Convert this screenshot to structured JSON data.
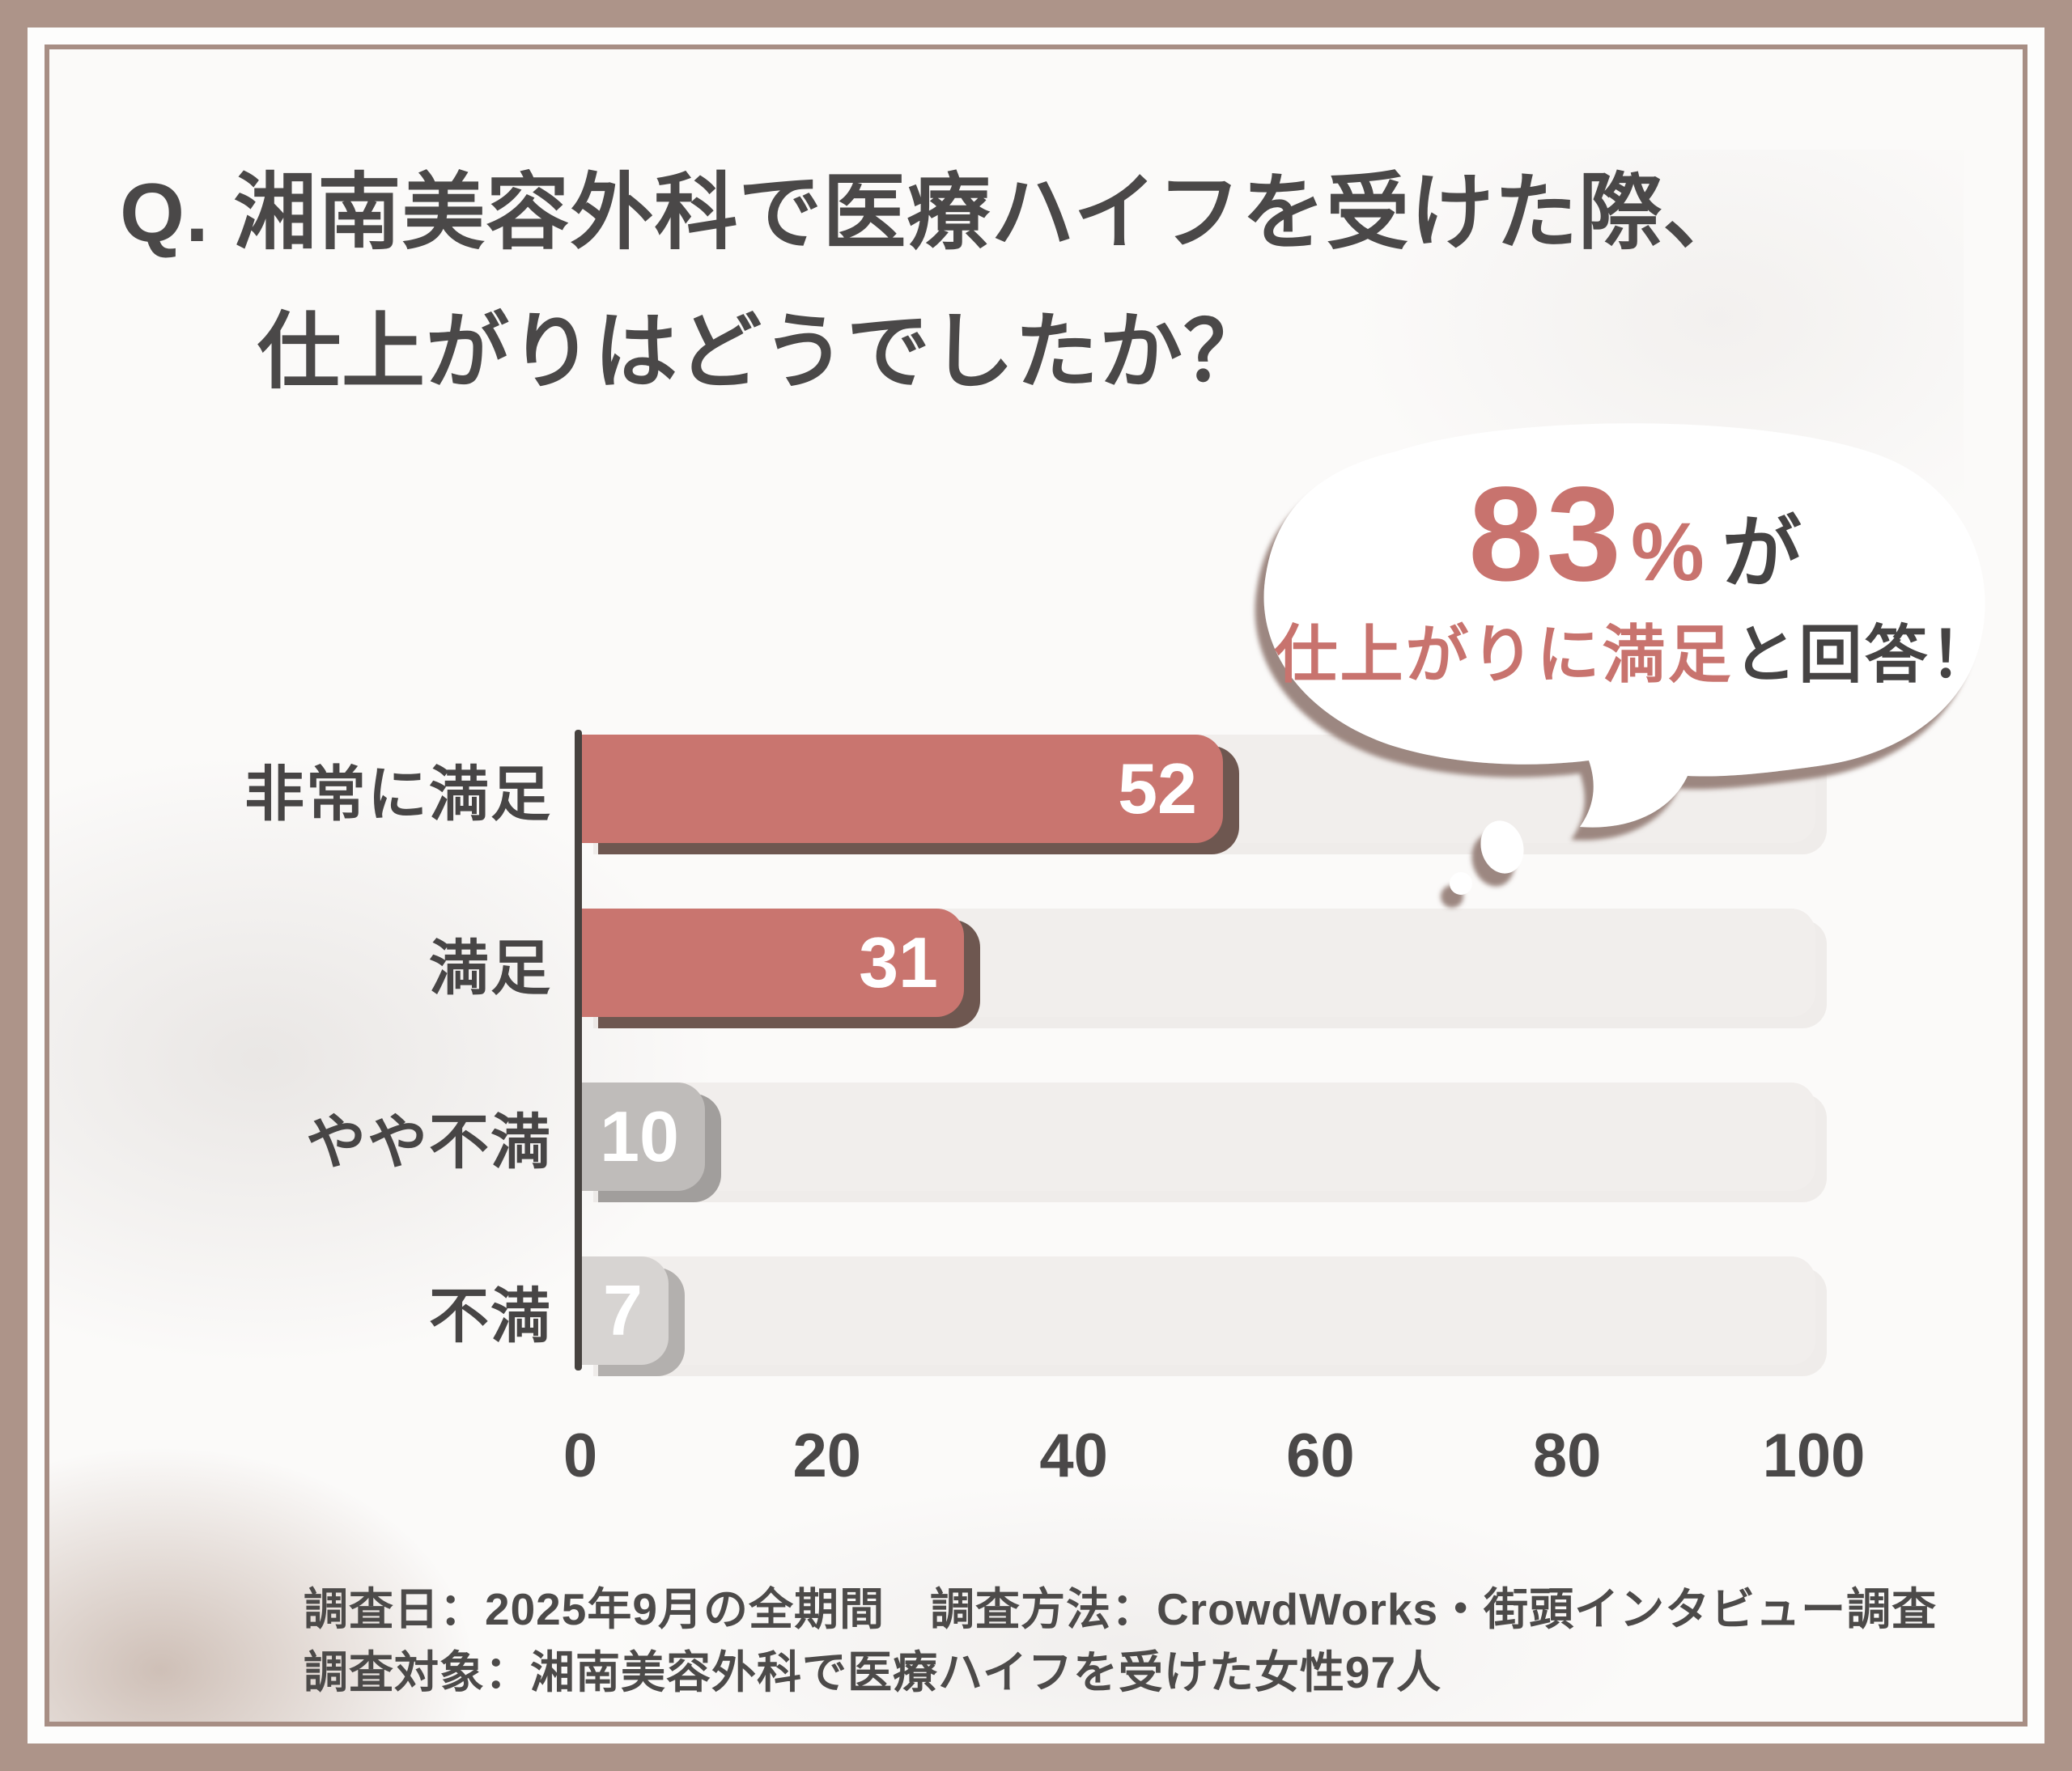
{
  "title": {
    "line1": "Q. 湘南美容外科で医療ハイフを受けた際、",
    "line2": "仕上がりはどうでしたか？"
  },
  "bubble": {
    "percent": "83",
    "unit": "%",
    "particle": "が",
    "highlight": "仕上がりに満足",
    "tail": "と回答！"
  },
  "chart_data": {
    "type": "bar",
    "orientation": "horizontal",
    "title": "Q. 湘南美容外科で医療ハイフを受けた際、仕上がりはどうでしたか？",
    "categories": [
      "非常に満足",
      "満足",
      "やや不満",
      "不満"
    ],
    "values": [
      52,
      31,
      10,
      7
    ],
    "bar_colors": [
      "#c9756f",
      "#c9756f",
      "#bfbcba",
      "#d7d4d2"
    ],
    "bar_shadow_colors": [
      "#6e5750",
      "#6e5750",
      "#a19e9c",
      "#b3b0ae"
    ],
    "value_label_color": "#ffffff",
    "xlim": [
      0,
      100
    ],
    "x_ticks": [
      0,
      20,
      40,
      60,
      80,
      100
    ],
    "grid": false,
    "legend": false,
    "annotation": "83%が仕上がりに満足と回答！"
  },
  "footer": {
    "line1": "調査日：2025年9月の全期間　調査方法：CrowdWorks・街頭インタビュー調査",
    "line2": "調査対象：湘南美容外科で医療ハイフを受けた女性97人"
  },
  "colors": {
    "accent": "#c9756f",
    "accent_shadow": "#6e5750",
    "gray_bar": "#bfbcba",
    "gray_bar_light": "#d7d4d2",
    "track": "#f1eeec",
    "frame_brown": "#ad9489",
    "text_dark": "#4a4848",
    "axis": "#46423f",
    "bubble_shadow": "#97817七7"
  }
}
